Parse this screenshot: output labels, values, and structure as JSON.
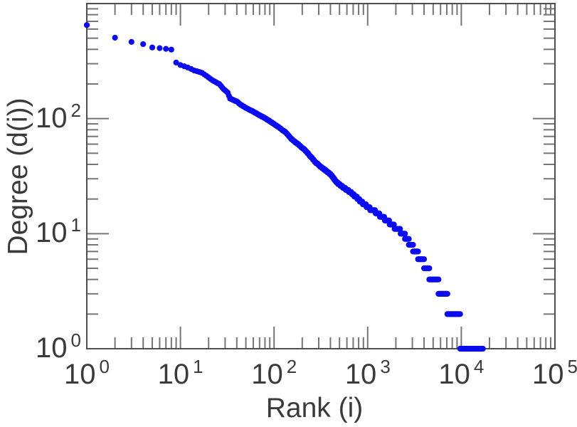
{
  "chart_data": {
    "type": "scatter",
    "xlabel": "Rank (i)",
    "ylabel": "Degree (d(i))",
    "x_scale": "log",
    "y_scale": "log",
    "xlim": [
      1,
      100000
    ],
    "ylim": [
      1,
      1000
    ],
    "grid": "off",
    "legend": "none",
    "tick_base": "10",
    "x_tick_exponents": [
      0,
      1,
      2,
      3,
      4,
      5
    ],
    "y_tick_exponents": [
      0,
      1,
      2
    ],
    "marker_color": "#0b0bee",
    "curve_anchors": [
      [
        1,
        650
      ],
      [
        2,
        505
      ],
      [
        3,
        464
      ],
      [
        4,
        444
      ],
      [
        5,
        415
      ],
      [
        6,
        410
      ],
      [
        7,
        404
      ],
      [
        8,
        398
      ],
      [
        9,
        307
      ],
      [
        10,
        292
      ],
      [
        12,
        278
      ],
      [
        14,
        262
      ],
      [
        17,
        250
      ],
      [
        20,
        228
      ],
      [
        22,
        215
      ],
      [
        26,
        200
      ],
      [
        29,
        180
      ],
      [
        32,
        168
      ],
      [
        34,
        149
      ],
      [
        40,
        141
      ],
      [
        44,
        132
      ],
      [
        51,
        123
      ],
      [
        60,
        115
      ],
      [
        70,
        107
      ],
      [
        80,
        101
      ],
      [
        90,
        95
      ],
      [
        110,
        85
      ],
      [
        130,
        77
      ],
      [
        155,
        66
      ],
      [
        180,
        60
      ],
      [
        220,
        52
      ],
      [
        275,
        42
      ],
      [
        330,
        37
      ],
      [
        400,
        33
      ],
      [
        465,
        28
      ],
      [
        560,
        25
      ],
      [
        650,
        23
      ],
      [
        745,
        21
      ],
      [
        850,
        19
      ],
      [
        1000,
        17
      ],
      [
        1200,
        15.5
      ],
      [
        1400,
        14.2
      ],
      [
        1700,
        12.5
      ],
      [
        2000,
        11.2
      ],
      [
        2280,
        10.4
      ]
    ],
    "degree_runs": [
      {
        "degree": 10,
        "rank_start": 2280,
        "rank_end": 2500
      },
      {
        "degree": 9,
        "rank_start": 2500,
        "rank_end": 2750
      },
      {
        "degree": 8,
        "rank_start": 2750,
        "rank_end": 3050
      },
      {
        "degree": 7,
        "rank_start": 3050,
        "rank_end": 3450
      },
      {
        "degree": 6,
        "rank_start": 3450,
        "rank_end": 4000
      },
      {
        "degree": 5,
        "rank_start": 4000,
        "rank_end": 4550
      },
      {
        "degree": 4,
        "rank_start": 4550,
        "rank_end": 5700
      },
      {
        "degree": 3,
        "rank_start": 5700,
        "rank_end": 7100
      },
      {
        "degree": 2,
        "rank_start": 7100,
        "rank_end": 9700
      },
      {
        "degree": 1,
        "rank_start": 9700,
        "rank_end": 17000
      }
    ]
  },
  "style": {
    "background": "#ffffff",
    "frame_color": "#4f4f4f",
    "tick_color": "#757575",
    "label_color": "#3a3a3a"
  }
}
